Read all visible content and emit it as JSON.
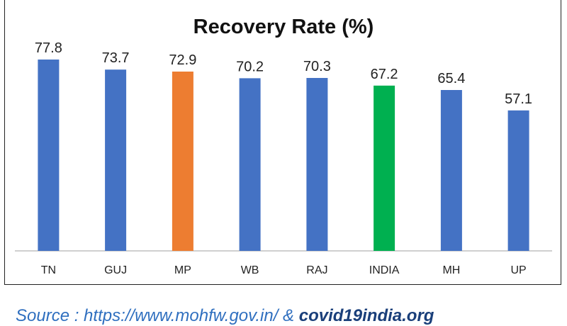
{
  "chart_data": {
    "type": "bar",
    "title": "Recovery Rate (%)",
    "xlabel": "",
    "ylabel": "",
    "categories": [
      "TN",
      "GUJ",
      "MP",
      "WB",
      "RAJ",
      "INDIA",
      "MH",
      "UP"
    ],
    "values": [
      77.8,
      73.7,
      72.9,
      70.2,
      70.3,
      67.2,
      65.4,
      57.1
    ],
    "value_labels": [
      "77.8",
      "73.7",
      "72.9",
      "70.2",
      "70.3",
      "67.2",
      "65.4",
      "57.1"
    ],
    "bar_colors": [
      "#4472C4",
      "#4472C4",
      "#ED7D31",
      "#4472C4",
      "#4472C4",
      "#00B050",
      "#4472C4",
      "#4472C4"
    ],
    "ylim": [
      0,
      80
    ],
    "grid": false,
    "legend": "none"
  },
  "source": {
    "text": "Source : https://www.mohfw.gov.in/ & ",
    "strong_text": "covid19india.org"
  }
}
